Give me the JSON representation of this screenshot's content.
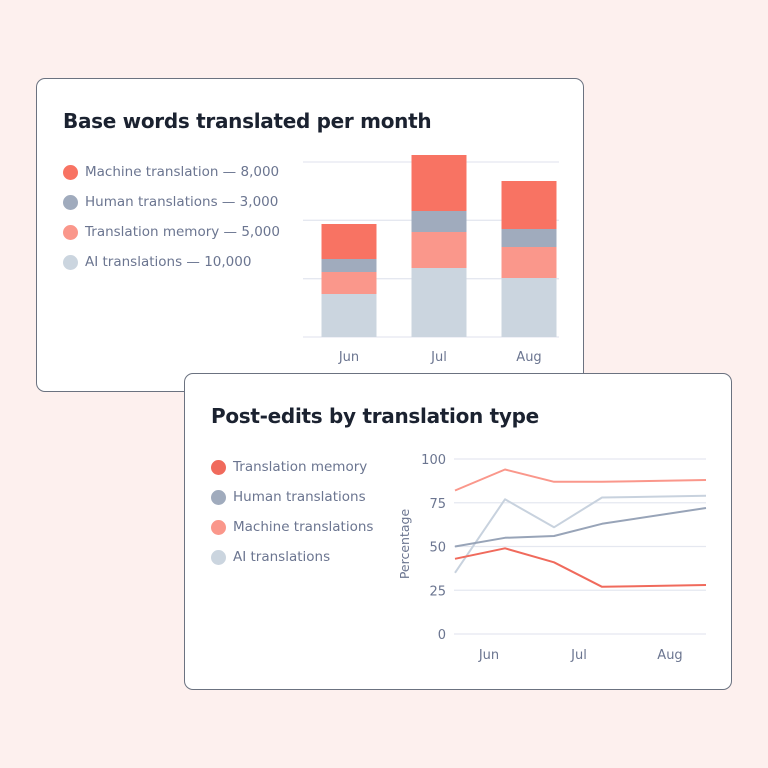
{
  "colors": {
    "machine": "#f87363",
    "human": "#a0abbd",
    "memory": "#fa978b",
    "ai": "#cbd5df",
    "grid": "#e5e8f0",
    "axis_text": "#6b7590",
    "title": "#1b2230"
  },
  "card1": {
    "title": "Base words translated per month",
    "legend": [
      {
        "label": "Machine translation — 8,000",
        "color": "#f87363"
      },
      {
        "label": "Human translations — 3,000",
        "color": "#a0abbd"
      },
      {
        "label": "Translation memory — 5,000",
        "color": "#fa978b"
      },
      {
        "label": "AI translations — 10,000",
        "color": "#cbd5df"
      }
    ]
  },
  "card2": {
    "title": "Post-edits by translation type",
    "legend": [
      {
        "label": "Translation memory",
        "color": "#f06a5c"
      },
      {
        "label": "Human translations",
        "color": "#a0abbd"
      },
      {
        "label": "Machine translations",
        "color": "#fa978b"
      },
      {
        "label": "AI translations",
        "color": "#cbd5df"
      }
    ],
    "ylabel": "Percentage"
  },
  "chart_data": [
    {
      "type": "bar",
      "stacked": true,
      "title": "Base words translated per month",
      "categories": [
        "Jun",
        "Jul",
        "Aug"
      ],
      "series": [
        {
          "name": "AI translations",
          "values": [
            43,
            69,
            59
          ]
        },
        {
          "name": "Translation memory",
          "values": [
            22,
            36,
            31
          ]
        },
        {
          "name": "Human translations",
          "values": [
            13,
            21,
            18
          ]
        },
        {
          "name": "Machine translation",
          "values": [
            35,
            56,
            48
          ]
        }
      ],
      "legend_totals": {
        "Machine translation": 8000,
        "Human translations": 3000,
        "Translation memory": 5000,
        "AI translations": 10000
      },
      "grid": true,
      "ylim": [
        0,
        175
      ],
      "legend_position": "left"
    },
    {
      "type": "line",
      "title": "Post-edits by translation type",
      "x": [
        "",
        "Jun",
        "",
        "Jul",
        "Aug"
      ],
      "xticks": [
        "Jun",
        "Jul",
        "Aug"
      ],
      "ylabel": "Percentage",
      "yticks": [
        0,
        25,
        50,
        75,
        100
      ],
      "ylim": [
        0,
        100
      ],
      "series": [
        {
          "name": "Translation memory",
          "values": [
            43,
            49,
            41,
            27,
            28
          ]
        },
        {
          "name": "Human translations",
          "values": [
            50,
            55,
            56,
            63,
            72
          ]
        },
        {
          "name": "Machine translations",
          "values": [
            82,
            94,
            87,
            87,
            88
          ]
        },
        {
          "name": "AI translations",
          "values": [
            35,
            77,
            61,
            78,
            79
          ]
        }
      ],
      "grid": true,
      "legend_position": "left"
    }
  ]
}
